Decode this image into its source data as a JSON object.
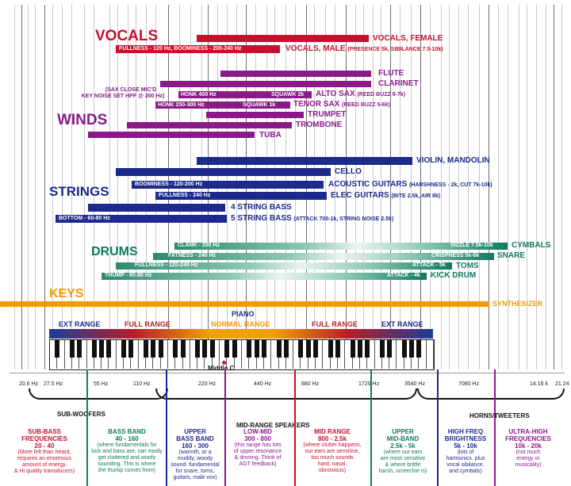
{
  "colors": {
    "vocals": "#c8102e",
    "winds": "#8a1a8a",
    "strings": "#1b2a8c",
    "drums": "#0f7a5f",
    "keys": "#f29a00"
  },
  "sections": {
    "vocals": "VOCALS",
    "winds": "WINDS",
    "strings": "STRINGS",
    "drums": "DRUMS",
    "keys": "KEYS"
  },
  "vocals": {
    "female": "VOCALS, FEMALE",
    "male_bar_text": "FULLNESS - 120 Hz, BOOMINESS - 200-240 Hz",
    "male_main": "VOCALS, MALE",
    "male_note": "(PRESENCE 5k, SIBILANCE 7.5-10k)"
  },
  "winds": {
    "flute": "FLUTE",
    "clarinet": "CLARINET",
    "alto_main": "ALTO SAX",
    "alto_note": "(REED BUZZ 6-7k)",
    "alto_honk": "HONK 400 Hz",
    "alto_squawk": "SQUAWK  2k",
    "tenor_main": "TENOR SAX",
    "tenor_note": "(REED BUZZ 5-6k)",
    "tenor_honk": "HONK 250-300 Hz",
    "tenor_squawk": "SQUAWK  1k",
    "trumpet": "TRUMPET",
    "trombone": "TROMBONE",
    "tuba": "TUBA",
    "sax_note_1": "(SAX CLOSE MIC'D",
    "sax_note_2": "KEY NOISE SET HPF @ 200 Hz)"
  },
  "strings": {
    "violin": "VIOLIN, MANDOLIN",
    "cello": "CELLO",
    "acoustic_bar": "BOOMINESS - 120-200 Hz",
    "acoustic_main": "ACOUSTIC GUITARS",
    "acoustic_note": "(HARSHNESS - 2k, CUT 7k-10k)",
    "elec_bar": "FULLNESS - 240 Hz",
    "elec_main": "ELEC GUITARS",
    "elec_note": "(BITE  2.5k, AIR 8k)",
    "bass4": "4 STRING BASS",
    "bass5_bar": "BOTTOM - 60-80 Hz",
    "bass5_main": "5 STRING BASS",
    "bass5_note": "(ATTACK 700-1k, STRING NOISE 2.5k)"
  },
  "drums": {
    "cymbals": "CYMBALS",
    "cymbals_bar_left": "CLANK - 200 Hz",
    "cymbals_bar_right": "SIZZLE 7.5k-10k",
    "snare": "SNARE",
    "snare_bar_left": "FATNESS - 240 Hz",
    "snare_bar_right": "CRISPNESS 5k-6k",
    "toms": "TOMS",
    "toms_bar_left": "FULLNESS - 120-240 Hz",
    "toms_bar_right": "ATTACK - 5k",
    "kick": "KICK DRUM",
    "kick_bar_left": "THUMP - 60-80 Hz",
    "kick_bar_right": "ATTACK - 4k"
  },
  "keys": {
    "synth": "SYNTHESIZER",
    "piano": "PIANO",
    "ext_left": "EXT RANGE",
    "full_left": "FULL RANGE",
    "normal": "NORMAL RANGE",
    "full_right": "FULL RANGE",
    "ext_right": "EXT RANGE",
    "middle_c": "Middle C"
  },
  "frequencies": [
    "20.6 Hz",
    "27.5 Hz",
    "55 Hz",
    "110 Hz",
    "220 Hz",
    "440 Hz",
    "880 Hz",
    "1720 Hz",
    "3540 Hz",
    "7080 Hz",
    "14.16 k",
    "21.24 k"
  ],
  "speakers": {
    "sub": "SUB-WOOFERS",
    "mid": "MID-RANGE SPEAKERS",
    "horns": "HORNS/TWEETERS"
  },
  "bands": [
    {
      "title": "SUB-BASS\nFREQUENCIES\n20 - 40",
      "desc": "(More felt than heard,\nrequires an enormous\namount of energy,\n& Hi quality transducers)",
      "color": "#c8102e"
    },
    {
      "title": "BASS BAND\n40 - 160",
      "desc": "(where fundamentals for\nkick and bass are, can easily\nget cluttered and woofy\nsounding. This is where\nthe thump comes from)",
      "color": "#0f7a5f"
    },
    {
      "title": "UPPER\nBASS BAND\n160 - 300",
      "desc": "(warmth, or a\nmuddy, woody\nsound. fundamental\nfor snare, toms,\nguitars, male vox)",
      "color": "#1b2a8c"
    },
    {
      "title": "LOW-MID\n300 - 800",
      "desc": "(this range has lots\nof upper resonance\n& droning. Think of\nAGT feedback)",
      "color": "#8a1a8a"
    },
    {
      "title": "MID RANGE\n800 - 2.5k",
      "desc": "(where clutter happens,\nour ears are sensitive,\ntoo much sounds\nhard, nasal,\nobnoxious)",
      "color": "#c8102e"
    },
    {
      "title": "UPPER\nMID-BAND\n2.5k - 5k",
      "desc": "(where our ears\nare most sensitive\n& where brittle\nharsh, screechie is)",
      "color": "#0f7a5f"
    },
    {
      "title": "HIGH FREQ\nBRIGHTNESS\n5k - 10k",
      "desc": "(lots of\nharmonics. plus\nvocal sibilance,\nand cymbals)",
      "color": "#1b2a8c"
    },
    {
      "title": "ULTRA-HIGH\nFREQUENCIES\n10k - 20k",
      "desc": "(not much\nenergy or\nmusicality)",
      "color": "#8a1a8a"
    }
  ]
}
